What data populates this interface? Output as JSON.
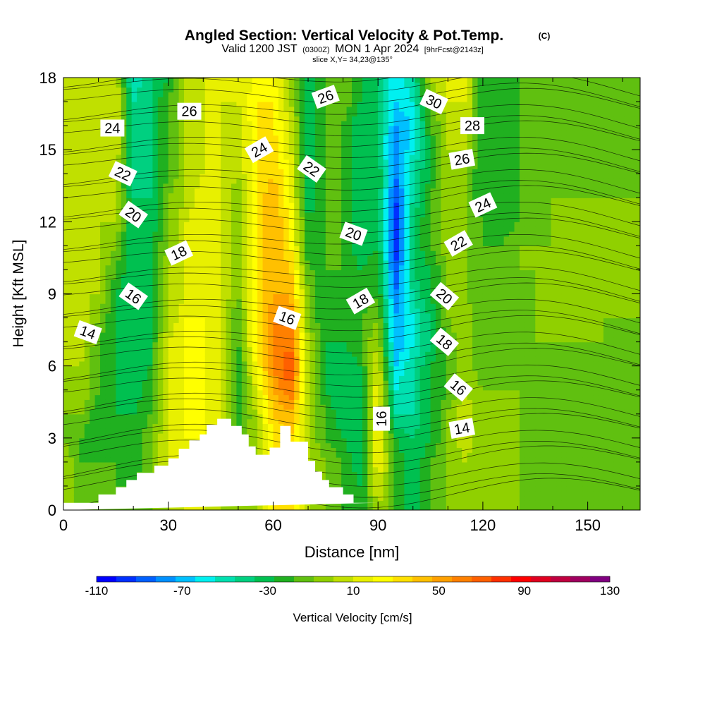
{
  "chart_data": {
    "type": "heatmap",
    "title": "Angled Section: Vertical Velocity & Pot.Temp.",
    "title_mark": "(C)",
    "subtitle_parts": [
      "Valid 1200 JST",
      "(0300Z)",
      "MON 1 Apr 2024",
      "[9hrFcst@2143z]"
    ],
    "slice_label": "slice X,Y= 34,23@135°",
    "xlabel": "Distance [nm]",
    "ylabel": "Height [Kft MSL]",
    "xlim": [
      0,
      165
    ],
    "ylim": [
      0,
      18
    ],
    "x_ticks": [
      "0",
      "30",
      "60",
      "90",
      "120",
      "150"
    ],
    "x_tick_values": [
      0,
      30,
      60,
      90,
      120,
      150
    ],
    "y_ticks": [
      "0",
      "3",
      "6",
      "9",
      "12",
      "15",
      "18"
    ],
    "y_tick_values": [
      0,
      3,
      6,
      9,
      12,
      15,
      18
    ],
    "colorbar": {
      "label": "Vertical Velocity [cm/s]",
      "min": -110,
      "max": 130,
      "step": 10,
      "tick_labels": [
        "-110",
        "-70",
        "-30",
        "10",
        "50",
        "90",
        "130"
      ],
      "tick_values": [
        -110,
        -70,
        -30,
        10,
        50,
        90,
        130
      ],
      "colors": [
        "#0000ff",
        "#0030ff",
        "#0060ff",
        "#0090ff",
        "#00c0ff",
        "#00f0f0",
        "#00e0b0",
        "#00d080",
        "#00c050",
        "#20b020",
        "#60c010",
        "#90d000",
        "#c0e000",
        "#e8f000",
        "#ffff00",
        "#ffe000",
        "#ffc000",
        "#ffa000",
        "#ff8000",
        "#ff6000",
        "#ff3000",
        "#ff0000",
        "#e00020",
        "#c00040",
        "#a00060",
        "#800080"
      ]
    },
    "velocity_columns": [
      {
        "x": 0,
        "v": [
          10,
          10,
          10,
          0,
          0,
          0,
          10,
          20,
          10,
          10,
          10,
          10,
          10,
          10,
          10,
          10,
          10,
          10,
          10
        ]
      },
      {
        "x": 5,
        "v": [
          -10,
          -10,
          -10,
          -10,
          0,
          10,
          10,
          20,
          20,
          10,
          10,
          10,
          10,
          10,
          10,
          10,
          10,
          10,
          10
        ]
      },
      {
        "x": 10,
        "v": [
          -10,
          -10,
          -10,
          -20,
          -20,
          -10,
          -10,
          -10,
          0,
          10,
          10,
          10,
          10,
          10,
          10,
          10,
          10,
          10,
          10
        ]
      },
      {
        "x": 15,
        "v": [
          -10,
          -10,
          -10,
          -20,
          -20,
          -20,
          -20,
          -20,
          -20,
          -20,
          -10,
          0,
          10,
          10,
          10,
          20,
          20,
          20,
          20
        ]
      },
      {
        "x": 20,
        "v": [
          -10,
          -10,
          -20,
          -20,
          -20,
          -30,
          -30,
          -30,
          -30,
          -30,
          -30,
          -30,
          -30,
          -30,
          -40,
          -40,
          -40,
          -40,
          -50
        ]
      },
      {
        "x": 25,
        "v": [
          0,
          0,
          0,
          0,
          -10,
          -10,
          -20,
          -20,
          -20,
          -20,
          -20,
          -20,
          -30,
          -30,
          -30,
          -30,
          -30,
          -30,
          -30
        ]
      },
      {
        "x": 30,
        "v": [
          10,
          10,
          20,
          20,
          20,
          20,
          20,
          20,
          10,
          10,
          10,
          0,
          0,
          0,
          -10,
          -10,
          -10,
          -10,
          -20
        ]
      },
      {
        "x": 35,
        "v": [
          20,
          20,
          30,
          30,
          30,
          30,
          30,
          30,
          30,
          20,
          20,
          20,
          20,
          10,
          10,
          10,
          10,
          10,
          10
        ]
      },
      {
        "x": 40,
        "v": [
          20,
          20,
          20,
          30,
          30,
          30,
          30,
          30,
          30,
          30,
          30,
          30,
          30,
          30,
          20,
          20,
          20,
          20,
          20
        ]
      },
      {
        "x": 45,
        "v": [
          10,
          10,
          10,
          20,
          20,
          20,
          20,
          20,
          20,
          20,
          20,
          20,
          20,
          20,
          20,
          20,
          20,
          20,
          20
        ]
      },
      {
        "x": 50,
        "v": [
          0,
          0,
          0,
          -10,
          -20,
          -20,
          -20,
          -10,
          -10,
          0,
          0,
          0,
          0,
          0,
          10,
          10,
          10,
          20,
          20
        ]
      },
      {
        "x": 55,
        "v": [
          10,
          10,
          10,
          10,
          10,
          20,
          30,
          40,
          40,
          40,
          40,
          40,
          40,
          40,
          40,
          40,
          40,
          40,
          30
        ]
      },
      {
        "x": 60,
        "v": [
          40,
          40,
          40,
          40,
          50,
          60,
          70,
          70,
          70,
          60,
          60,
          60,
          60,
          60,
          50,
          50,
          40,
          40,
          30
        ]
      },
      {
        "x": 65,
        "v": [
          50,
          50,
          50,
          50,
          60,
          80,
          90,
          80,
          70,
          60,
          50,
          40,
          40,
          30,
          30,
          20,
          20,
          10,
          10
        ]
      },
      {
        "x": 70,
        "v": [
          10,
          10,
          10,
          10,
          10,
          10,
          10,
          10,
          0,
          0,
          -10,
          -20,
          -20,
          -30,
          -30,
          -30,
          -30,
          -30,
          -30
        ]
      },
      {
        "x": 75,
        "v": [
          0,
          0,
          0,
          -10,
          -10,
          -20,
          -20,
          -20,
          -20,
          -20,
          -10,
          -10,
          -10,
          -10,
          -10,
          -10,
          -10,
          -10,
          -10
        ]
      },
      {
        "x": 80,
        "v": [
          -10,
          -10,
          -10,
          -20,
          -30,
          -30,
          -30,
          -20,
          -20,
          -20,
          -10,
          -10,
          -10,
          -10,
          -10,
          -10,
          -10,
          0,
          0
        ]
      },
      {
        "x": 85,
        "v": [
          -20,
          -20,
          -30,
          -30,
          -30,
          -30,
          -20,
          -10,
          -10,
          -20,
          -20,
          -30,
          -30,
          -30,
          -30,
          -30,
          -30,
          -20,
          -20
        ]
      },
      {
        "x": 90,
        "v": [
          10,
          20,
          30,
          30,
          30,
          30,
          20,
          10,
          0,
          -10,
          -10,
          -20,
          -20,
          -20,
          -20,
          -30,
          -30,
          -30,
          -30
        ]
      },
      {
        "x": 95,
        "v": [
          -10,
          -10,
          -10,
          -20,
          -40,
          -50,
          -60,
          -70,
          -70,
          -80,
          -90,
          -100,
          -100,
          -90,
          -80,
          -80,
          -70,
          -60,
          -60
        ]
      },
      {
        "x": 100,
        "v": [
          -30,
          -30,
          -30,
          -30,
          -40,
          -40,
          -40,
          -50,
          -50,
          -40,
          -30,
          -30,
          -30,
          -40,
          -40,
          -50,
          -60,
          -50,
          -40
        ]
      },
      {
        "x": 105,
        "v": [
          -10,
          -10,
          -10,
          -20,
          -20,
          -20,
          -20,
          -30,
          -30,
          -20,
          -20,
          -10,
          -10,
          -10,
          -20,
          -20,
          -10,
          0,
          10
        ]
      },
      {
        "x": 110,
        "v": [
          0,
          0,
          0,
          0,
          0,
          -10,
          -10,
          -10,
          0,
          0,
          0,
          10,
          10,
          10,
          10,
          10,
          10,
          20,
          20
        ]
      },
      {
        "x": 115,
        "v": [
          10,
          10,
          10,
          20,
          20,
          10,
          10,
          10,
          10,
          0,
          0,
          0,
          0,
          0,
          0,
          10,
          20,
          20,
          20
        ]
      },
      {
        "x": 120,
        "v": [
          0,
          0,
          0,
          0,
          0,
          0,
          -10,
          -10,
          -10,
          -10,
          -10,
          -10,
          -10,
          -20,
          -20,
          -20,
          -20,
          -20,
          -20
        ]
      },
      {
        "x": 125,
        "v": [
          0,
          0,
          10,
          10,
          10,
          0,
          -10,
          -10,
          -10,
          -10,
          -10,
          -10,
          -20,
          -20,
          -20,
          -20,
          -20,
          -20,
          -20
        ]
      },
      {
        "x": 130,
        "v": [
          0,
          0,
          0,
          0,
          0,
          0,
          -10,
          -10,
          -10,
          -10,
          0,
          0,
          -10,
          -10,
          -10,
          -10,
          -10,
          -10,
          -10
        ]
      },
      {
        "x": 135,
        "v": [
          -10,
          -10,
          -10,
          -10,
          -10,
          -10,
          -10,
          0,
          0,
          0,
          0,
          0,
          -10,
          -10,
          -10,
          -10,
          -10,
          -10,
          -10
        ]
      },
      {
        "x": 140,
        "v": [
          -10,
          -10,
          -10,
          -10,
          -10,
          -10,
          -10,
          0,
          0,
          0,
          0,
          0,
          0,
          0,
          -10,
          -10,
          -10,
          -10,
          -10
        ]
      },
      {
        "x": 145,
        "v": [
          -10,
          -10,
          -10,
          -10,
          -10,
          -10,
          -10,
          0,
          0,
          0,
          0,
          0,
          0,
          0,
          -10,
          -10,
          -10,
          -10,
          -10
        ]
      },
      {
        "x": 150,
        "v": [
          -10,
          -10,
          -10,
          -10,
          -10,
          -10,
          -10,
          0,
          0,
          0,
          0,
          0,
          0,
          0,
          -10,
          -10,
          -10,
          -10,
          -10
        ]
      },
      {
        "x": 155,
        "v": [
          -10,
          -10,
          -10,
          -10,
          -10,
          -10,
          -10,
          0,
          0,
          0,
          0,
          0,
          0,
          0,
          -10,
          -10,
          -10,
          -10,
          -10
        ]
      },
      {
        "x": 160,
        "v": [
          -10,
          -10,
          -10,
          -10,
          -10,
          -10,
          -10,
          -10,
          0,
          0,
          0,
          0,
          0,
          0,
          -10,
          -10,
          -10,
          -10,
          -10
        ]
      },
      {
        "x": 165,
        "v": [
          -10,
          -10,
          -10,
          -10,
          -10,
          -10,
          -10,
          -10,
          0,
          0,
          0,
          0,
          0,
          0,
          -10,
          -10,
          -10,
          -10,
          -10
        ]
      }
    ],
    "terrain": {
      "x": [
        0,
        10,
        10,
        15,
        15,
        18,
        18,
        21,
        21,
        26,
        26,
        30,
        30,
        33,
        33,
        36,
        36,
        39,
        39,
        41,
        41,
        44,
        44,
        48,
        48,
        51,
        51,
        53,
        53,
        55,
        55,
        59,
        59,
        62,
        62,
        65,
        65,
        70,
        70,
        72,
        72,
        74,
        74,
        76,
        76,
        80,
        80,
        83,
        83,
        86,
        86,
        90,
        90,
        165
      ],
      "y": [
        0.3,
        0.3,
        0.65,
        0.65,
        0.95,
        0.95,
        1.25,
        1.25,
        1.55,
        1.55,
        1.85,
        1.85,
        2.15,
        2.15,
        2.55,
        2.55,
        2.9,
        2.9,
        3.15,
        3.15,
        3.55,
        3.55,
        3.8,
        3.8,
        3.5,
        3.5,
        3.15,
        3.15,
        2.65,
        2.65,
        2.3,
        2.3,
        2.6,
        2.6,
        3.5,
        3.5,
        2.85,
        2.85,
        2.05,
        2.05,
        1.6,
        1.6,
        1.25,
        1.25,
        0.95,
        0.95,
        0.65,
        0.65,
        0.3,
        0.3,
        0.3,
        0.3
      ]
    },
    "contour_level_labels": [
      {
        "x": 7,
        "y": 7.4,
        "text": "14",
        "angle": 20
      },
      {
        "x": 20,
        "y": 8.9,
        "text": "16",
        "angle": 35
      },
      {
        "x": 33,
        "y": 10.7,
        "text": "18",
        "angle": -25
      },
      {
        "x": 20,
        "y": 12.3,
        "text": "20",
        "angle": 35
      },
      {
        "x": 17,
        "y": 14.0,
        "text": "22",
        "angle": 25
      },
      {
        "x": 14,
        "y": 15.9,
        "text": "24",
        "angle": 0
      },
      {
        "x": 36,
        "y": 16.6,
        "text": "26",
        "angle": 0
      },
      {
        "x": 56,
        "y": 15.0,
        "text": "24",
        "angle": -30
      },
      {
        "x": 71,
        "y": 14.2,
        "text": "22",
        "angle": 35
      },
      {
        "x": 64,
        "y": 8.0,
        "text": "16",
        "angle": 20
      },
      {
        "x": 83,
        "y": 11.5,
        "text": "20",
        "angle": 20
      },
      {
        "x": 85,
        "y": 8.7,
        "text": "18",
        "angle": -30
      },
      {
        "x": 75,
        "y": 17.2,
        "text": "26",
        "angle": -20
      },
      {
        "x": 106,
        "y": 17.0,
        "text": "30",
        "angle": 25
      },
      {
        "x": 117,
        "y": 16.0,
        "text": "28",
        "angle": 0
      },
      {
        "x": 114,
        "y": 14.6,
        "text": "26",
        "angle": -10
      },
      {
        "x": 120,
        "y": 12.7,
        "text": "24",
        "angle": -25
      },
      {
        "x": 113,
        "y": 11.1,
        "text": "22",
        "angle": -30
      },
      {
        "x": 109,
        "y": 8.9,
        "text": "20",
        "angle": 40
      },
      {
        "x": 109,
        "y": 7.0,
        "text": "18",
        "angle": 40
      },
      {
        "x": 113,
        "y": 5.1,
        "text": "16",
        "angle": 40
      },
      {
        "x": 91,
        "y": 3.8,
        "text": "16",
        "angle": -90
      },
      {
        "x": 114,
        "y": 3.4,
        "text": "14",
        "angle": -10
      }
    ]
  }
}
